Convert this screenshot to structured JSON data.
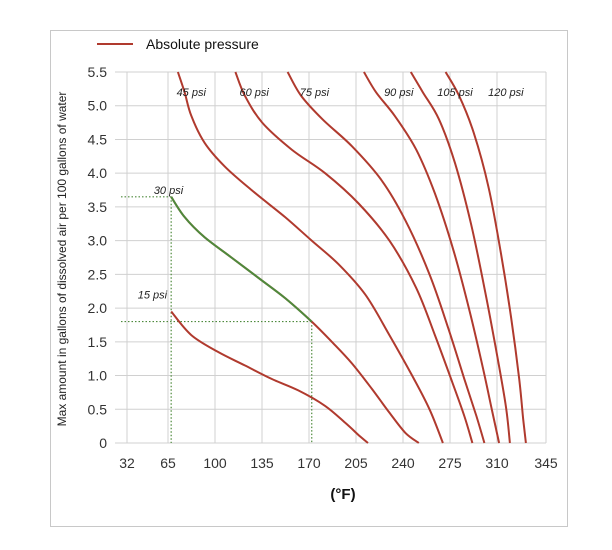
{
  "chart_data": {
    "type": "line",
    "xlabel": "(°F)",
    "ylabel": "Max amount in gallons of dissolved air per 100 gallons of water",
    "x_ticks": [
      "32",
      "65",
      "100",
      "135",
      "170",
      "205",
      "240",
      "275",
      "310",
      "345"
    ],
    "y_ticks": [
      "0",
      "0.5",
      "1.0",
      "1.5",
      "2.0",
      "2.5",
      "3.0",
      "3.5",
      "4.0",
      "4.5",
      "5.0",
      "5.5"
    ],
    "xlim": [
      32,
      345
    ],
    "ylim": [
      0,
      5.5
    ],
    "grid": true,
    "legend": {
      "position": "top-left",
      "label": "Absolute pressure"
    },
    "colors": {
      "series": "#b03a2e",
      "reading_line": "#4e8a3c",
      "grid": "#d0d0d0"
    },
    "series": [
      {
        "name": "15 psi",
        "points": [
          [
            65,
            1.95
          ],
          [
            80,
            1.6
          ],
          [
            100,
            1.35
          ],
          [
            120,
            1.15
          ],
          [
            140,
            0.95
          ],
          [
            160,
            0.78
          ],
          [
            180,
            0.55
          ],
          [
            195,
            0.3
          ],
          [
            206,
            0.1
          ],
          [
            212,
            0
          ]
        ]
      },
      {
        "name": "30 psi",
        "points": [
          [
            65,
            3.65
          ],
          [
            75,
            3.35
          ],
          [
            90,
            3.05
          ],
          [
            110,
            2.75
          ],
          [
            130,
            2.45
          ],
          [
            150,
            2.15
          ],
          [
            170,
            1.8
          ],
          [
            185,
            1.5
          ],
          [
            200,
            1.18
          ],
          [
            215,
            0.8
          ],
          [
            228,
            0.45
          ],
          [
            240,
            0.15
          ],
          [
            250,
            0
          ]
        ]
      },
      {
        "name": "45 psi",
        "points": [
          [
            70,
            5.5
          ],
          [
            75,
            5.2
          ],
          [
            80,
            4.85
          ],
          [
            90,
            4.45
          ],
          [
            105,
            4.1
          ],
          [
            125,
            3.75
          ],
          [
            150,
            3.35
          ],
          [
            170,
            3.0
          ],
          [
            190,
            2.65
          ],
          [
            210,
            2.2
          ],
          [
            228,
            1.6
          ],
          [
            245,
            1.0
          ],
          [
            258,
            0.5
          ],
          [
            268,
            0
          ]
        ]
      },
      {
        "name": "60 psi",
        "points": [
          [
            113,
            5.5
          ],
          [
            120,
            5.15
          ],
          [
            133,
            4.75
          ],
          [
            155,
            4.35
          ],
          [
            180,
            4.0
          ],
          [
            205,
            3.55
          ],
          [
            228,
            3.0
          ],
          [
            248,
            2.3
          ],
          [
            262,
            1.6
          ],
          [
            275,
            0.9
          ],
          [
            284,
            0.4
          ],
          [
            290,
            0
          ]
        ]
      },
      {
        "name": "75 psi",
        "points": [
          [
            152,
            5.5
          ],
          [
            162,
            5.15
          ],
          [
            178,
            4.8
          ],
          [
            200,
            4.4
          ],
          [
            222,
            3.9
          ],
          [
            240,
            3.3
          ],
          [
            258,
            2.5
          ],
          [
            272,
            1.7
          ],
          [
            284,
            0.95
          ],
          [
            293,
            0.4
          ],
          [
            299,
            0
          ]
        ]
      },
      {
        "name": "90 psi",
        "points": [
          [
            209,
            5.5
          ],
          [
            218,
            5.2
          ],
          [
            232,
            4.85
          ],
          [
            248,
            4.35
          ],
          [
            262,
            3.7
          ],
          [
            276,
            2.85
          ],
          [
            288,
            1.95
          ],
          [
            298,
            1.1
          ],
          [
            305,
            0.45
          ],
          [
            310,
            0
          ]
        ]
      },
      {
        "name": "105 psi",
        "points": [
          [
            244,
            5.5
          ],
          [
            253,
            5.2
          ],
          [
            265,
            4.8
          ],
          [
            277,
            4.15
          ],
          [
            289,
            3.25
          ],
          [
            299,
            2.3
          ],
          [
            308,
            1.35
          ],
          [
            315,
            0.55
          ],
          [
            318,
            0
          ]
        ]
      },
      {
        "name": "120 psi",
        "points": [
          [
            270,
            5.5
          ],
          [
            280,
            5.15
          ],
          [
            291,
            4.6
          ],
          [
            302,
            3.8
          ],
          [
            311,
            2.85
          ],
          [
            319,
            1.85
          ],
          [
            325,
            0.95
          ],
          [
            328,
            0.35
          ],
          [
            330,
            0
          ]
        ]
      }
    ],
    "annotations": [
      {
        "text": "45 psi",
        "x": 80,
        "y": 5.2
      },
      {
        "text": "60 psi",
        "x": 127,
        "y": 5.2
      },
      {
        "text": "75 psi",
        "x": 172,
        "y": 5.2
      },
      {
        "text": "90 psi",
        "x": 235,
        "y": 5.2
      },
      {
        "text": "105 psi",
        "x": 277,
        "y": 5.2
      },
      {
        "text": "120 psi",
        "x": 315,
        "y": 5.2
      },
      {
        "text": "30 psi",
        "x": 63,
        "y": 3.75
      },
      {
        "text": "15 psi",
        "x": 51,
        "y": 2.2
      }
    ],
    "reading_lines": [
      {
        "x_from": 32,
        "x_to": 65,
        "y": 3.65,
        "x_drop": 65
      },
      {
        "x_from": 32,
        "x_to": 170,
        "y": 1.8,
        "x_drop": 170
      }
    ],
    "highlight_segment": {
      "series": "30 psi",
      "x_from": 65,
      "x_to": 170
    }
  }
}
